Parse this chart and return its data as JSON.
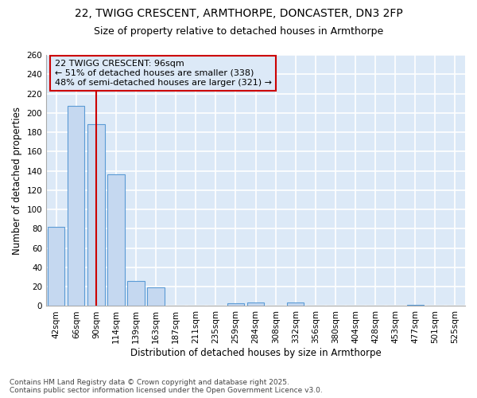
{
  "title_line1": "22, TWIGG CRESCENT, ARMTHORPE, DONCASTER, DN3 2FP",
  "title_line2": "Size of property relative to detached houses in Armthorpe",
  "xlabel": "Distribution of detached houses by size in Armthorpe",
  "ylabel": "Number of detached properties",
  "categories": [
    "42sqm",
    "66sqm",
    "90sqm",
    "114sqm",
    "139sqm",
    "163sqm",
    "187sqm",
    "211sqm",
    "235sqm",
    "259sqm",
    "284sqm",
    "308sqm",
    "332sqm",
    "356sqm",
    "380sqm",
    "404sqm",
    "428sqm",
    "453sqm",
    "477sqm",
    "501sqm",
    "525sqm"
  ],
  "values": [
    82,
    207,
    188,
    136,
    26,
    19,
    0,
    0,
    0,
    3,
    4,
    0,
    4,
    0,
    0,
    0,
    0,
    0,
    1,
    0,
    0
  ],
  "bar_color": "#c5d8f0",
  "bar_edge_color": "#5b9bd5",
  "vline_x_index": 2,
  "vline_color": "#cc0000",
  "annotation_line1": "22 TWIGG CRESCENT: 96sqm",
  "annotation_line2": "← 51% of detached houses are smaller (338)",
  "annotation_line3": "48% of semi-detached houses are larger (321) →",
  "annotation_box_color": "#cc0000",
  "ylim": [
    0,
    260
  ],
  "yticks": [
    0,
    20,
    40,
    60,
    80,
    100,
    120,
    140,
    160,
    180,
    200,
    220,
    240,
    260
  ],
  "plot_bg_color": "#dce9f7",
  "fig_bg_color": "#ffffff",
  "grid_color": "#ffffff",
  "footer": "Contains HM Land Registry data © Crown copyright and database right 2025.\nContains public sector information licensed under the Open Government Licence v3.0.",
  "title_fontsize": 10,
  "subtitle_fontsize": 9,
  "axis_label_fontsize": 8.5,
  "tick_fontsize": 7.5,
  "annotation_fontsize": 8,
  "footer_fontsize": 6.5
}
